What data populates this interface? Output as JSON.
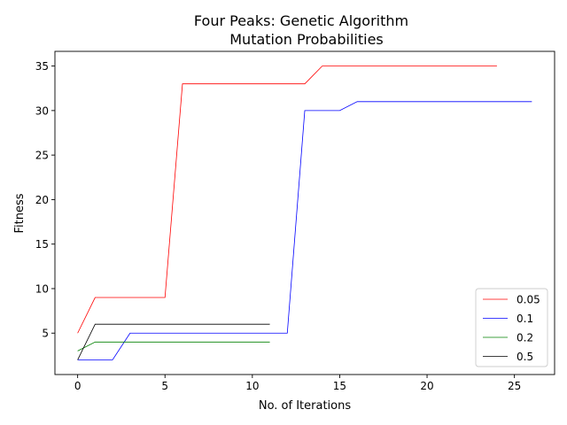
{
  "chart_data": {
    "type": "line",
    "title_line1": "Four Peaks: Genetic Algorithm",
    "title_line2": "Mutation Probabilities",
    "xlabel": "No. of Iterations",
    "ylabel": "Fitness",
    "xlim": [
      -1.3,
      27.3
    ],
    "ylim": [
      0.35,
      36.65
    ],
    "x_ticks": [
      0,
      5,
      10,
      15,
      20,
      25
    ],
    "y_ticks": [
      5,
      10,
      15,
      20,
      25,
      30,
      35
    ],
    "legend_position": "lower right",
    "series": [
      {
        "name": "0.05",
        "color": "#ff0000",
        "x": [
          0,
          1,
          2,
          3,
          4,
          5,
          6,
          7,
          8,
          9,
          10,
          11,
          12,
          13,
          14,
          15,
          16,
          17,
          18,
          19,
          20,
          21,
          22,
          23,
          24
        ],
        "y": [
          5,
          9,
          9,
          9,
          9,
          9,
          33,
          33,
          33,
          33,
          33,
          33,
          33,
          33,
          35,
          35,
          35,
          35,
          35,
          35,
          35,
          35,
          35,
          35,
          35
        ]
      },
      {
        "name": "0.1",
        "color": "#0000ff",
        "x": [
          0,
          1,
          2,
          3,
          4,
          5,
          6,
          7,
          8,
          9,
          10,
          11,
          12,
          13,
          14,
          15,
          16,
          17,
          18,
          19,
          20,
          21,
          22,
          23,
          24,
          25,
          26
        ],
        "y": [
          2,
          2,
          2,
          5,
          5,
          5,
          5,
          5,
          5,
          5,
          5,
          5,
          5,
          30,
          30,
          30,
          31,
          31,
          31,
          31,
          31,
          31,
          31,
          31,
          31,
          31,
          31
        ]
      },
      {
        "name": "0.2",
        "color": "#008000",
        "x": [
          0,
          1,
          2,
          3,
          4,
          5,
          6,
          7,
          8,
          9,
          10,
          11
        ],
        "y": [
          3,
          4,
          4,
          4,
          4,
          4,
          4,
          4,
          4,
          4,
          4,
          4
        ]
      },
      {
        "name": "0.5",
        "color": "#000000",
        "x": [
          0,
          1,
          2,
          3,
          4,
          5,
          6,
          7,
          8,
          9,
          10,
          11
        ],
        "y": [
          2,
          6,
          6,
          6,
          6,
          6,
          6,
          6,
          6,
          6,
          6,
          6
        ]
      }
    ]
  }
}
